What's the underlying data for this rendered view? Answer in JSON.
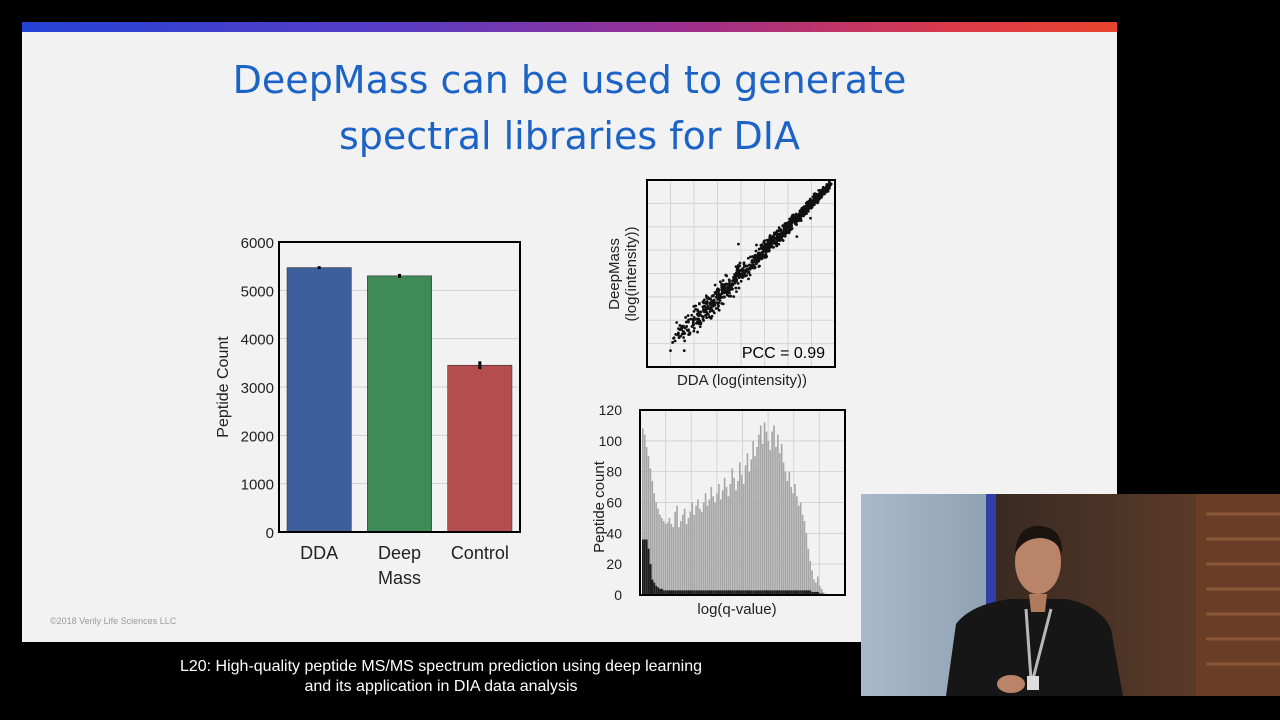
{
  "slide": {
    "title_line1": "DeepMass can be used to generate",
    "title_line2": "spectral libraries for DIA",
    "copyright": "©2018 Verily Life Sciences LLC",
    "accent_colors": [
      "#2442d6",
      "#9b2f8f",
      "#e8452e"
    ]
  },
  "caption": {
    "line1": "L20: High-quality peptide MS/MS spectrum prediction using deep learning",
    "line2": "and its application in DIA data analysis"
  },
  "speaker_video": {
    "description_icon": "presenter-video-feed"
  },
  "chart_data": [
    {
      "type": "bar",
      "ylabel": "Peptide Count",
      "xlabel": "",
      "categories": [
        "DDA",
        "Deep Mass",
        "Control"
      ],
      "category_lines": [
        [
          "DDA"
        ],
        [
          "Deep",
          "Mass"
        ],
        [
          "Control"
        ]
      ],
      "values": [
        5470,
        5300,
        3450
      ],
      "errors": [
        30,
        40,
        80
      ],
      "colors": [
        "#3d5f9c",
        "#3f8a57",
        "#b44d4d"
      ],
      "ylim": [
        0,
        6000
      ],
      "yticks": [
        0,
        1000,
        2000,
        3000,
        4000,
        5000,
        6000
      ],
      "grid": true
    },
    {
      "type": "scatter",
      "xlabel": "DDA (log(intensity))",
      "ylabel_line1": "DeepMass",
      "ylabel_line2": "(log(intensity))",
      "annotation": "PCC = 0.99",
      "grid": true
    },
    {
      "type": "bar",
      "xlabel": "log(q-value)",
      "ylabel": "Peptide count",
      "ylim": [
        0,
        120
      ],
      "yticks": [
        0,
        20,
        40,
        60,
        80,
        100,
        120
      ],
      "values": [
        108,
        104,
        96,
        90,
        82,
        74,
        66,
        60,
        56,
        52,
        50,
        48,
        46,
        47,
        50,
        46,
        44,
        54,
        58,
        44,
        48,
        52,
        56,
        46,
        50,
        54,
        60,
        52,
        58,
        62,
        56,
        54,
        60,
        66,
        58,
        62,
        70,
        64,
        60,
        66,
        72,
        62,
        68,
        76,
        70,
        64,
        72,
        82,
        76,
        68,
        74,
        86,
        78,
        72,
        84,
        92,
        80,
        88,
        100,
        90,
        96,
        104,
        110,
        98,
        112,
        106,
        100,
        94,
        106,
        110,
        96,
        104,
        92,
        98,
        86,
        80,
        74,
        80,
        70,
        66,
        72,
        64,
        58,
        60,
        52,
        48,
        40,
        30,
        22,
        16,
        10,
        8,
        12,
        6,
        4,
        2,
        1
      ],
      "dark_values": [
        36,
        36,
        36,
        30,
        20,
        10,
        8,
        6,
        5,
        4,
        4,
        3,
        3,
        3,
        3,
        3,
        3,
        3,
        3,
        3,
        3,
        3,
        3,
        3,
        3,
        3,
        3,
        3,
        3,
        3,
        3,
        3,
        3,
        3,
        3,
        3,
        3,
        3,
        3,
        3,
        3,
        3,
        3,
        3,
        3,
        3,
        3,
        3,
        3,
        3,
        3,
        3,
        3,
        3,
        3,
        3,
        3,
        3,
        3,
        3,
        3,
        3,
        3,
        3,
        3,
        3,
        3,
        3,
        3,
        3,
        3,
        3,
        3,
        3,
        3,
        3,
        3,
        3,
        3,
        3,
        3,
        3,
        3,
        3,
        3,
        3,
        3,
        3,
        3,
        2,
        2,
        2,
        2,
        1,
        1,
        0,
        0
      ],
      "colors": [
        "#a6a6a6",
        "#1e1e1e"
      ],
      "grid": true
    }
  ]
}
